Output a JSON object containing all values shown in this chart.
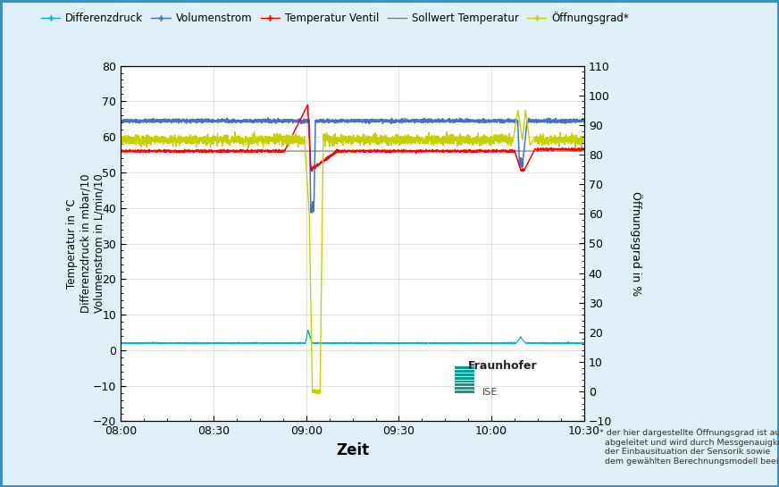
{
  "title": "",
  "xlabel": "Zeit",
  "ylabel_left": "Temperatur in °C\nDifferenzdruck in mbar/10\nVolumenstrom in L/min/10",
  "ylabel_right": "Öffnungsgrad in %",
  "ylim_left": [
    -20,
    80
  ],
  "ylim_right": [
    -10,
    110
  ],
  "xlim_minutes": [
    0,
    150
  ],
  "x_tick_labels": [
    "08:00",
    "08:30",
    "09:00",
    "09:30",
    "10:00",
    "10:30"
  ],
  "x_tick_positions": [
    0,
    30,
    60,
    90,
    120,
    150
  ],
  "yticks_left": [
    -20,
    -10,
    0,
    10,
    20,
    30,
    40,
    50,
    60,
    70,
    80
  ],
  "yticks_right": [
    -10,
    0,
    10,
    20,
    30,
    40,
    50,
    60,
    70,
    80,
    90,
    100,
    110
  ],
  "bg_color": "#dff0f8",
  "plot_bg": "#ffffff",
  "border_color": "#3a8fc0",
  "colors": {
    "differenzdruck": "#00b0f0",
    "volumenstrom": "#4472c4",
    "temperatur_ventil": "#ff0000",
    "sollwert_temperatur": "#7f7f7f",
    "oeffnungsgrad": "#c8d000"
  },
  "legend_labels": [
    "Differenzdruck",
    "Volumenstrom",
    "Temperatur Ventil",
    "Sollwert Temperatur",
    "Öffnungsgrad*"
  ],
  "footnote": "* der hier dargestellte Öffnungsgrad ist aus Messdaten\n  abgeleitet und wird durch Messgenauigkeiten,\n  der Einbausituation der Sensorik sowie\n  dem gewählten Berechnungsmodell beeinflusst",
  "fraunhofer_green": "#009a8e"
}
